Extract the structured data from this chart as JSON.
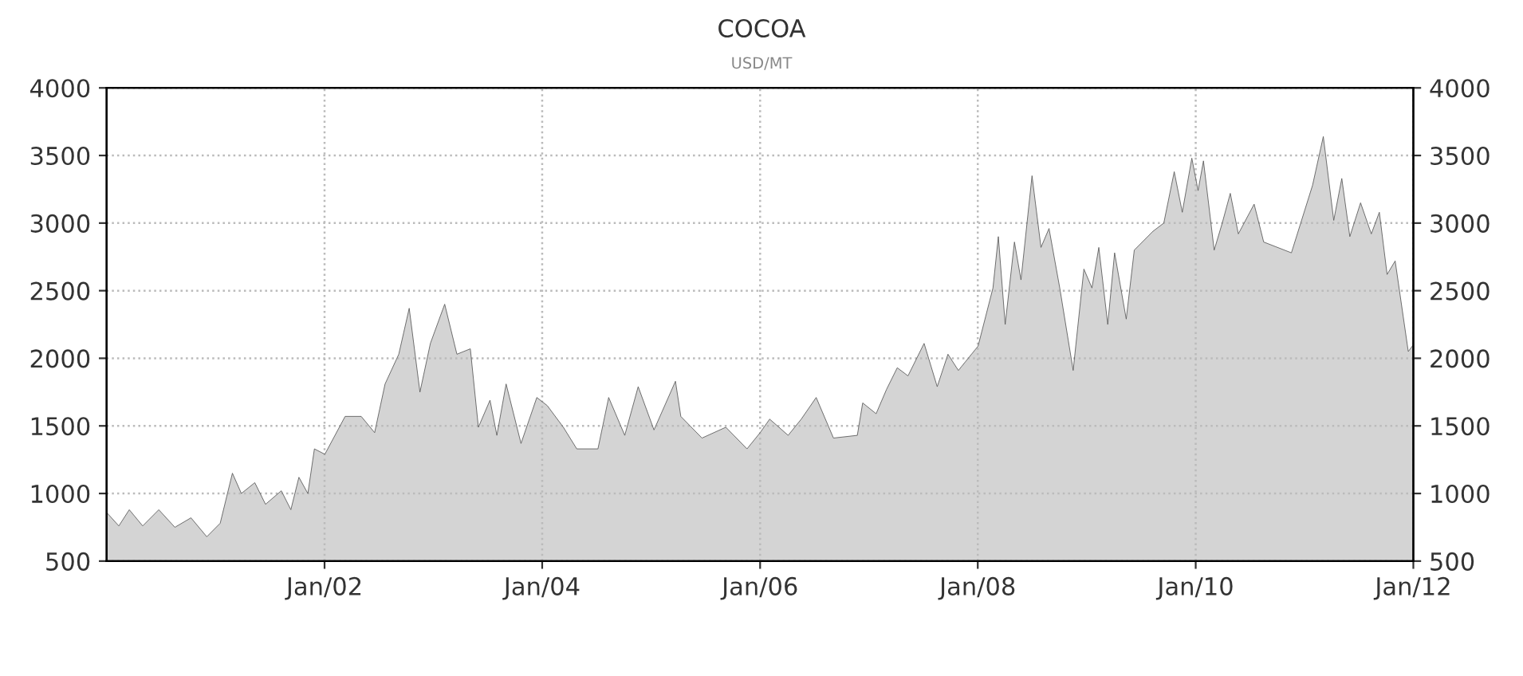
{
  "chart_data": {
    "type": "area",
    "title": "COCOA",
    "subtitle": "USD/MT",
    "x": [
      "2000-01-01",
      "2000-02-11",
      "2000-03-17",
      "2000-05-01",
      "2000-06-24",
      "2000-08-17",
      "2000-10-10",
      "2000-12-02",
      "2001-01-16",
      "2001-02-26",
      "2001-03-28",
      "2001-05-12",
      "2001-06-17",
      "2001-08-09",
      "2001-09-10",
      "2001-10-07",
      "2001-11-06",
      "2001-11-28",
      "2002-01-02",
      "2002-03-11",
      "2002-05-04",
      "2002-06-18",
      "2002-07-23",
      "2002-09-07",
      "2002-10-12",
      "2002-11-17",
      "2002-12-22",
      "2003-02-08",
      "2003-03-21",
      "2003-05-05",
      "2003-06-01",
      "2003-07-10",
      "2003-08-02",
      "2003-09-02",
      "2003-10-22",
      "2003-12-14",
      "2004-01-18",
      "2004-03-12",
      "2004-04-26",
      "2004-07-06",
      "2004-08-11",
      "2004-10-04",
      "2004-11-18",
      "2005-01-10",
      "2005-03-23",
      "2005-04-10",
      "2005-06-20",
      "2005-09-08",
      "2005-11-18",
      "2006-01-01",
      "2006-02-02",
      "2006-04-05",
      "2006-05-19",
      "2006-07-08",
      "2006-09-04",
      "2006-11-23",
      "2006-12-11",
      "2007-01-25",
      "2007-03-01",
      "2007-04-06",
      "2007-05-12",
      "2007-07-05",
      "2007-08-18",
      "2007-09-23",
      "2007-10-28",
      "2008-01-02",
      "2008-02-21",
      "2008-03-10",
      "2008-04-02",
      "2008-05-03",
      "2008-05-25",
      "2008-07-01",
      "2008-07-31",
      "2008-08-27",
      "2008-10-02",
      "2008-11-16",
      "2008-12-22",
      "2009-01-18",
      "2009-02-10",
      "2009-03-12",
      "2009-04-04",
      "2009-05-13",
      "2009-06-09",
      "2009-08-11",
      "2009-09-16",
      "2009-10-21",
      "2009-11-17",
      "2009-12-19",
      "2010-01-09",
      "2010-01-27",
      "2010-03-04",
      "2010-03-31",
      "2010-04-27",
      "2010-05-24",
      "2010-07-16",
      "2010-08-17",
      "2010-11-18",
      "2011-01-28",
      "2011-03-05",
      "2011-04-09",
      "2011-05-06",
      "2011-06-02",
      "2011-07-08",
      "2011-08-13",
      "2011-09-09",
      "2011-10-05",
      "2011-11-01",
      "2011-12-15",
      "2012-01-01"
    ],
    "series": [
      {
        "color": "#555555",
        "values": [
          860,
          760,
          880,
          760,
          880,
          750,
          820,
          680,
          780,
          1150,
          1000,
          1080,
          920,
          1020,
          880,
          1120,
          1000,
          1330,
          1290,
          1570,
          1570,
          1450,
          1810,
          2030,
          2370,
          1750,
          2110,
          2400,
          2030,
          2070,
          1490,
          1690,
          1430,
          1810,
          1370,
          1710,
          1650,
          1490,
          1330,
          1330,
          1710,
          1430,
          1790,
          1470,
          1830,
          1570,
          1410,
          1490,
          1330,
          1450,
          1550,
          1430,
          1550,
          1710,
          1410,
          1430,
          1670,
          1590,
          1770,
          1930,
          1870,
          2110,
          1790,
          2030,
          1910,
          2090,
          2520,
          2900,
          2250,
          2860,
          2580,
          3350,
          2820,
          2960,
          2520,
          1910,
          2660,
          2520,
          2820,
          2250,
          2780,
          2290,
          2800,
          2940,
          3000,
          3380,
          3080,
          3480,
          3240,
          3460,
          2800,
          3000,
          3220,
          2920,
          3140,
          2860,
          2780,
          3280,
          3640,
          3020,
          3330,
          2900,
          3150,
          2920,
          3080,
          2620,
          2720,
          2050,
          2100
        ]
      }
    ],
    "xlim": [
      "2000-01-01",
      "2012-01-01"
    ],
    "xticks": [
      {
        "value": "2002-01-01",
        "label": "Jan/02"
      },
      {
        "value": "2004-01-01",
        "label": "Jan/04"
      },
      {
        "value": "2006-01-01",
        "label": "Jan/06"
      },
      {
        "value": "2008-01-01",
        "label": "Jan/08"
      },
      {
        "value": "2010-01-01",
        "label": "Jan/10"
      },
      {
        "value": "2012-01-01",
        "label": "Jan/12"
      }
    ],
    "ylim": [
      500,
      4000
    ],
    "yticks": [
      500,
      1000,
      1500,
      2000,
      2500,
      3000,
      3500,
      4000
    ],
    "y2lim": [
      500,
      4000
    ],
    "y2ticks": [
      500,
      1000,
      1500,
      2000,
      2500,
      3000,
      3500,
      4000
    ],
    "grid": true,
    "marker": "none",
    "line_style": "solid"
  }
}
